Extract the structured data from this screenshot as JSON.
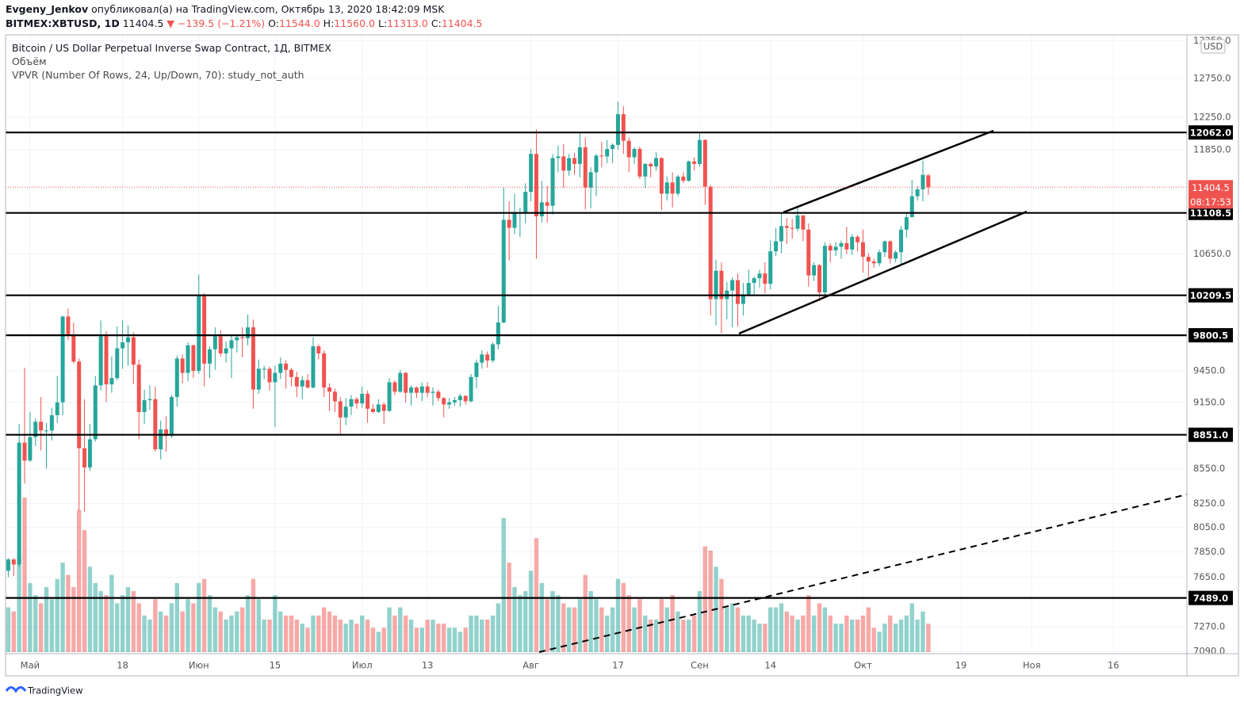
{
  "header": {
    "author": "Evgeny_Jenkov",
    "published": "опубликовал(а) на TradingView.com, Октябрь 13, 2020 18:42:09 MSK",
    "symbol": "BITMEX:XBTUSD, 1D",
    "last": "11404.5",
    "change": "▼ −139.5 (−1.21%)",
    "ohlc": [
      {
        "k": "O:",
        "v": "11544.0"
      },
      {
        "k": "H:",
        "v": "11560.0"
      },
      {
        "k": "L:",
        "v": "11313.0"
      },
      {
        "k": "C:",
        "v": "11404.5"
      }
    ]
  },
  "legend": {
    "title": "Bitcoin / US Dollar Perpetual Inverse Swap Contract, 1Д, BITMEX",
    "volume": "Объём",
    "vpvr": "VPVR (Number Of Rows, 24, Up/Down, 70): study_not_auth"
  },
  "currency": "USD",
  "footer": "TradingView",
  "chart_data": {
    "type": "candlestick",
    "categories": [
      null,
      null,
      null,
      null,
      "Май",
      null,
      null,
      null,
      null,
      null,
      null,
      null,
      null,
      null,
      null,
      null,
      null,
      null,
      null,
      null,
      null,
      "18",
      null,
      null,
      null,
      null,
      null,
      null,
      null,
      null,
      null,
      null,
      null,
      null,
      null,
      "Июн",
      null,
      null,
      null,
      null,
      null,
      null,
      null,
      null,
      null,
      null,
      null,
      null,
      null,
      "15",
      null,
      null,
      null,
      null,
      null,
      null,
      null,
      null,
      null,
      null,
      null,
      null,
      null,
      null,
      null,
      "Июл",
      null,
      null,
      null,
      null,
      null,
      null,
      null,
      null,
      null,
      null,
      null,
      "13",
      null,
      null,
      null,
      null,
      null,
      null,
      null,
      null,
      null,
      null,
      null,
      null,
      null,
      null,
      null,
      null,
      null,
      null,
      "Авг",
      null,
      null,
      null,
      null,
      null,
      null,
      null,
      null,
      null,
      null,
      null,
      null,
      null,
      null,
      null,
      "17",
      null,
      null,
      null,
      null,
      null,
      null,
      null,
      null,
      null,
      null,
      null,
      null,
      null,
      null,
      "Сен",
      null,
      null,
      null,
      null,
      null,
      null,
      null,
      null,
      null,
      null,
      null,
      null,
      "14",
      null,
      null,
      null,
      null,
      null,
      null,
      null,
      null,
      null,
      null,
      null,
      null,
      null,
      null,
      null,
      null,
      "Окт",
      null,
      null,
      null,
      null,
      null,
      null,
      null,
      null,
      null,
      null,
      null,
      null,
      null,
      null,
      null,
      null,
      null,
      "19",
      null,
      null,
      null,
      null,
      null,
      null,
      null,
      null,
      null,
      null,
      null,
      null,
      "Ноя",
      null,
      null,
      null,
      null,
      null,
      null,
      null,
      null,
      null,
      null,
      null,
      null,
      null,
      null,
      "16",
      null,
      null,
      null,
      null,
      null,
      null,
      null,
      null,
      null,
      null,
      null,
      null,
      null
    ],
    "open": [
      7700,
      7790,
      7750,
      8780,
      8620,
      8830,
      8970,
      8890,
      8890,
      9030,
      9150,
      9990,
      9810,
      9540,
      8730,
      8560,
      8810,
      9310,
      9790,
      9320,
      9380,
      9670,
      9730,
      9780,
      9510,
      9060,
      9170,
      9180,
      8720,
      8900,
      8840,
      9200,
      9570,
      9430,
      9700,
      9450,
      10200,
      9520,
      9660,
      9790,
      9620,
      9670,
      9750,
      9780,
      9770,
      9880,
      9270,
      9470,
      9470,
      9340,
      9430,
      9520,
      9460,
      9390,
      9300,
      9360,
      9290,
      9690,
      9620,
      9290,
      9250,
      9160,
      9010,
      9110,
      9180,
      9140,
      9230,
      9090,
      9060,
      9130,
      9070,
      9340,
      9250,
      9430,
      9240,
      9290,
      9240,
      9300,
      9240,
      9250,
      9190,
      9130,
      9150,
      9170,
      9210,
      9160,
      9390,
      9530,
      9610,
      9550,
      9710,
      9930,
      11030,
      10940,
      11110,
      11110,
      11350,
      11800,
      11070,
      11230,
      11190,
      11750,
      11770,
      11600,
      11750,
      11680,
      11880,
      11400,
      11580,
      11780,
      11770,
      11860,
      11910,
      12290,
      11960,
      11760,
      11860,
      11530,
      11680,
      11650,
      11750,
      11330,
      11460,
      11330,
      11530,
      11480,
      11710,
      11680,
      11970,
      11410,
      10170,
      10470,
      10170,
      10260,
      10370,
      10120,
      10220,
      10340,
      10390,
      10440,
      10330,
      10680,
      10790,
      10960,
      10940,
      10930,
      11080,
      10920,
      10420,
      10530,
      10240,
      10740,
      10690,
      10730,
      10770,
      10700,
      10840,
      10780,
      10620,
      10570,
      10550,
      10670,
      10790,
      10600,
      10670,
      10920,
      11060,
      11300,
      11380,
      11544,
      null,
      null,
      null,
      null,
      null,
      null,
      null,
      null,
      null,
      null,
      null,
      null,
      null,
      null,
      null,
      null,
      null,
      null,
      null,
      null,
      null,
      null,
      null,
      null,
      null,
      null,
      null,
      null,
      null,
      null,
      null,
      null,
      null,
      null,
      null,
      null,
      null,
      null,
      null,
      null,
      null,
      null,
      null,
      null,
      null,
      null,
      null
    ],
    "high": [
      7800,
      7800,
      8950,
      9480,
      9060,
      9000,
      9200,
      8960,
      9100,
      9400,
      10000,
      10070,
      9930,
      9570,
      9180,
      8950,
      9400,
      9950,
      9840,
      9590,
      9890,
      9950,
      9900,
      9830,
      9560,
      9270,
      9310,
      9300,
      8980,
      9020,
      9220,
      9600,
      9610,
      9730,
      9710,
      10430,
      10230,
      9690,
      9880,
      9850,
      9740,
      9800,
      9800,
      9880,
      10010,
      9960,
      9560,
      9500,
      9490,
      9500,
      9580,
      9550,
      9480,
      9440,
      9400,
      9420,
      9780,
      9710,
      9650,
      9330,
      9280,
      9200,
      9190,
      9220,
      9200,
      9300,
      9260,
      9130,
      9180,
      9150,
      9380,
      9360,
      9460,
      9440,
      9310,
      9300,
      9340,
      9340,
      9290,
      9270,
      9200,
      9190,
      9200,
      9230,
      9220,
      9420,
      9560,
      9650,
      9640,
      9730,
      10100,
      11400,
      11240,
      11330,
      11170,
      11450,
      11860,
      12100,
      11480,
      11420,
      11800,
      11900,
      11920,
      11800,
      11810,
      12060,
      12000,
      11640,
      11800,
      11950,
      11970,
      11930,
      12450,
      12390,
      12000,
      11880,
      11890,
      11690,
      11700,
      11820,
      11760,
      11530,
      11580,
      11550,
      11580,
      11720,
      11760,
      12070,
      11980,
      11430,
      10590,
      10560,
      10350,
      10400,
      10440,
      10340,
      10480,
      10410,
      10480,
      10560,
      10800,
      10940,
      11100,
      11050,
      11040,
      11180,
      11080,
      10990,
      10560,
      10540,
      10780,
      10770,
      10780,
      10800,
      10950,
      10870,
      10860,
      10920,
      10660,
      10600,
      10700,
      10800,
      10800,
      10690,
      10960,
      11110,
      11490,
      11420,
      11720,
      11560,
      null,
      null,
      null,
      null,
      null,
      null,
      null,
      null,
      null,
      null,
      null,
      null,
      null,
      null,
      null,
      null,
      null,
      null,
      null,
      null,
      null,
      null,
      null,
      null,
      null,
      null,
      null,
      null,
      null,
      null,
      null,
      null,
      null,
      null,
      null,
      null,
      null,
      null,
      null,
      null,
      null,
      null,
      null,
      null,
      null,
      null,
      null
    ],
    "low": [
      7650,
      7660,
      7730,
      8420,
      8610,
      8750,
      8710,
      8550,
      8800,
      8960,
      9030,
      9750,
      9520,
      8190,
      8180,
      8530,
      8790,
      9260,
      9150,
      9240,
      9360,
      9470,
      9500,
      9320,
      8810,
      8950,
      9080,
      8700,
      8630,
      8700,
      8820,
      9110,
      9330,
      9350,
      9380,
      9420,
      9300,
      9380,
      9460,
      9590,
      9530,
      9380,
      9630,
      9580,
      9700,
      9090,
      9230,
      9370,
      9260,
      8920,
      9370,
      9280,
      9300,
      9200,
      9180,
      9280,
      9280,
      9560,
      9200,
      9070,
      9060,
      8860,
      8940,
      9030,
      9090,
      9100,
      8960,
      9050,
      9050,
      8950,
      9060,
      9220,
      9240,
      9150,
      9120,
      9190,
      9160,
      9200,
      9120,
      9160,
      9010,
      9090,
      9120,
      9110,
      9130,
      9150,
      9280,
      9470,
      9480,
      9530,
      9660,
      9920,
      10580,
      10870,
      10840,
      10990,
      11240,
      10600,
      11000,
      11000,
      11090,
      11580,
      11400,
      11540,
      11550,
      11520,
      11150,
      11160,
      11300,
      11640,
      11690,
      11690,
      11850,
      11800,
      11580,
      11680,
      11500,
      11400,
      11520,
      11600,
      11140,
      11250,
      11170,
      11300,
      11450,
      11470,
      11600,
      11650,
      11200,
      10000,
      9900,
      9820,
      9960,
      9880,
      9890,
      10000,
      10200,
      10200,
      10290,
      10230,
      10270,
      10630,
      10660,
      10760,
      10820,
      10900,
      10790,
      10300,
      10360,
      10150,
      10200,
      10560,
      10630,
      10600,
      10650,
      10640,
      10680,
      10450,
      10390,
      10500,
      10520,
      10620,
      10550,
      10560,
      10540,
      10830,
      11060,
      11250,
      11240,
      11313,
      null,
      null,
      null,
      null,
      null,
      null,
      null,
      null,
      null,
      null,
      null,
      null,
      null,
      null,
      null,
      null,
      null,
      null,
      null,
      null,
      null,
      null,
      null,
      null,
      null,
      null,
      null,
      null,
      null,
      null,
      null,
      null,
      null,
      null,
      null,
      null,
      null,
      null,
      null,
      null,
      null,
      null,
      null,
      null,
      null,
      null,
      null
    ],
    "close": [
      7790,
      7750,
      8780,
      8620,
      8830,
      8970,
      8890,
      8890,
      9030,
      9150,
      9990,
      9810,
      9540,
      8730,
      8560,
      8810,
      9310,
      9790,
      9320,
      9380,
      9670,
      9730,
      9780,
      9510,
      9060,
      9170,
      9180,
      8720,
      8900,
      8840,
      9200,
      9570,
      9430,
      9700,
      9450,
      10200,
      9520,
      9660,
      9790,
      9620,
      9670,
      9750,
      9780,
      9770,
      9880,
      9270,
      9470,
      9470,
      9340,
      9430,
      9520,
      9460,
      9390,
      9300,
      9360,
      9290,
      9690,
      9620,
      9290,
      9250,
      9160,
      9010,
      9110,
      9180,
      9140,
      9230,
      9090,
      9060,
      9130,
      9070,
      9340,
      9250,
      9430,
      9240,
      9290,
      9240,
      9300,
      9240,
      9250,
      9190,
      9130,
      9150,
      9170,
      9210,
      9160,
      9390,
      9530,
      9610,
      9550,
      9710,
      9930,
      11030,
      10940,
      11110,
      11110,
      11350,
      11800,
      11070,
      11230,
      11190,
      11750,
      11770,
      11600,
      11750,
      11680,
      11880,
      11400,
      11580,
      11780,
      11770,
      11860,
      11910,
      12290,
      11960,
      11760,
      11860,
      11530,
      11680,
      11650,
      11750,
      11330,
      11460,
      11330,
      11530,
      11480,
      11710,
      11680,
      11970,
      11410,
      10170,
      10470,
      10170,
      10260,
      10370,
      10120,
      10220,
      10340,
      10390,
      10440,
      10330,
      10680,
      10790,
      10960,
      10940,
      10930,
      11080,
      10920,
      10420,
      10530,
      10240,
      10740,
      10690,
      10730,
      10770,
      10700,
      10840,
      10780,
      10620,
      10570,
      10550,
      10670,
      10790,
      10600,
      10670,
      10920,
      11060,
      11300,
      11380,
      11550,
      11404.5,
      null,
      null,
      null,
      null,
      null,
      null,
      null,
      null,
      null,
      null,
      null,
      null,
      null,
      null,
      null,
      null,
      null,
      null,
      null,
      null,
      null,
      null,
      null,
      null,
      null,
      null,
      null,
      null,
      null,
      null,
      null,
      null,
      null,
      null,
      null,
      null,
      null,
      null,
      null,
      null,
      null,
      null,
      null,
      null,
      null,
      null,
      null
    ],
    "volume": [
      55,
      50,
      120,
      190,
      85,
      70,
      60,
      80,
      65,
      90,
      110,
      95,
      80,
      175,
      150,
      105,
      85,
      75,
      70,
      95,
      60,
      70,
      80,
      75,
      60,
      45,
      40,
      65,
      50,
      45,
      60,
      85,
      50,
      65,
      60,
      85,
      90,
      70,
      55,
      50,
      40,
      45,
      50,
      55,
      70,
      90,
      65,
      40,
      40,
      70,
      50,
      45,
      45,
      40,
      35,
      30,
      45,
      45,
      55,
      50,
      45,
      40,
      35,
      40,
      35,
      45,
      40,
      30,
      25,
      30,
      55,
      45,
      55,
      45,
      40,
      30,
      30,
      40,
      40,
      35,
      35,
      30,
      30,
      25,
      30,
      45,
      45,
      40,
      40,
      45,
      60,
      165,
      110,
      80,
      70,
      75,
      100,
      140,
      85,
      65,
      75,
      70,
      60,
      55,
      55,
      65,
      95,
      75,
      65,
      55,
      45,
      55,
      90,
      85,
      70,
      55,
      65,
      45,
      40,
      40,
      65,
      55,
      70,
      50,
      40,
      40,
      45,
      75,
      130,
      125,
      105,
      90,
      55,
      60,
      55,
      45,
      45,
      40,
      35,
      35,
      55,
      55,
      60,
      50,
      45,
      40,
      45,
      70,
      45,
      60,
      55,
      45,
      35,
      35,
      45,
      40,
      40,
      45,
      55,
      30,
      25,
      35,
      45,
      35,
      40,
      45,
      60,
      40,
      50,
      35,
      null,
      null,
      null,
      null,
      null,
      null,
      null,
      null,
      null,
      null,
      null,
      null,
      null,
      null,
      null,
      null,
      null,
      null,
      null,
      null,
      null,
      null,
      null,
      null,
      null,
      null,
      null,
      null,
      null,
      null,
      null,
      null,
      null,
      null,
      null,
      null,
      null,
      null,
      null,
      null,
      null,
      null,
      null,
      null,
      null,
      null,
      null
    ],
    "up_color": "#26a69a",
    "down_color": "#ef5350",
    "ylim": [
      7085,
      13330
    ],
    "log_scale": true,
    "grid": true,
    "yticks": [
      {
        "value": 13250,
        "label": "13250.0"
      },
      {
        "value": 12750,
        "label": "12750.0"
      },
      {
        "value": 12250,
        "label": "12250.0"
      },
      {
        "value": 11850,
        "label": "11850.0"
      },
      {
        "value": 10650,
        "label": "10650.0"
      },
      {
        "value": 9450,
        "label": "9450.0"
      },
      {
        "value": 9150,
        "label": "9150.0"
      },
      {
        "value": 8550,
        "label": "8550.0"
      },
      {
        "value": 8250,
        "label": "8250.0"
      },
      {
        "value": 8050,
        "label": "8050.0"
      },
      {
        "value": 7850,
        "label": "7850.0"
      },
      {
        "value": 7650,
        "label": "7650.0"
      },
      {
        "value": 7270,
        "label": "7270.0"
      },
      {
        "value": 7090,
        "label": "7090.0"
      }
    ],
    "levels": [
      {
        "value": 12062,
        "label": "12062.0"
      },
      {
        "value": 11108.5,
        "label": "11108.5"
      },
      {
        "value": 10209.5,
        "label": "10209.5"
      },
      {
        "value": 9800.5,
        "label": "9800.5"
      },
      {
        "value": 8851,
        "label": "8851.0"
      },
      {
        "value": 7489,
        "label": "7489.0"
      }
    ],
    "last_price": 11404.5,
    "countdown": "08:17:53"
  }
}
